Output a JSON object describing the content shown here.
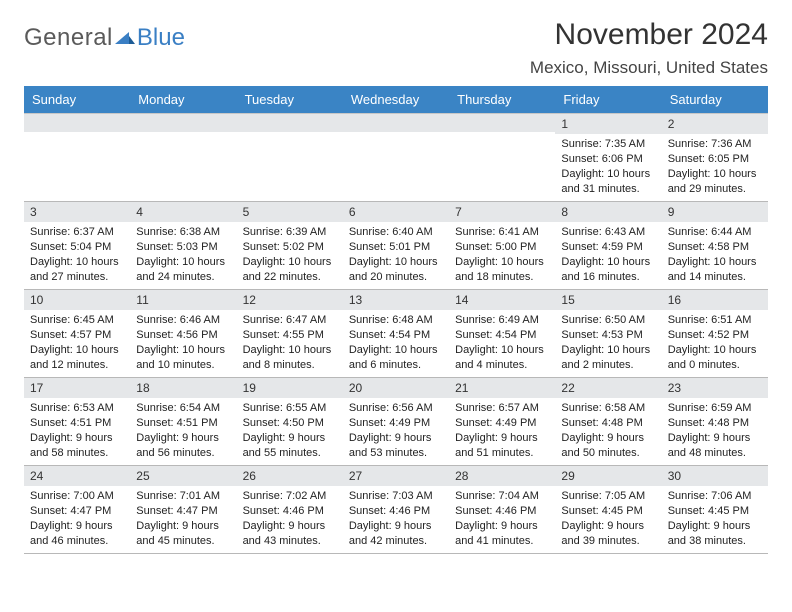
{
  "logo": {
    "general": "General",
    "blue": "Blue"
  },
  "title": "November 2024",
  "location": "Mexico, Missouri, United States",
  "colors": {
    "header_bg": "#3a84c5",
    "header_text": "#ffffff",
    "daynum_bg": "#e5e7e9",
    "border": "#b8b8b8",
    "text": "#222222",
    "logo_gray": "#5a5a5a",
    "logo_blue": "#3a7fc4"
  },
  "typography": {
    "title_fontsize": 30,
    "location_fontsize": 17,
    "weekday_fontsize": 13,
    "cell_fontsize": 11
  },
  "weekdays": [
    "Sunday",
    "Monday",
    "Tuesday",
    "Wednesday",
    "Thursday",
    "Friday",
    "Saturday"
  ],
  "weeks": [
    [
      null,
      null,
      null,
      null,
      null,
      {
        "n": "1",
        "sr": "Sunrise: 7:35 AM",
        "ss": "Sunset: 6:06 PM",
        "dl1": "Daylight: 10 hours",
        "dl2": "and 31 minutes."
      },
      {
        "n": "2",
        "sr": "Sunrise: 7:36 AM",
        "ss": "Sunset: 6:05 PM",
        "dl1": "Daylight: 10 hours",
        "dl2": "and 29 minutes."
      }
    ],
    [
      {
        "n": "3",
        "sr": "Sunrise: 6:37 AM",
        "ss": "Sunset: 5:04 PM",
        "dl1": "Daylight: 10 hours",
        "dl2": "and 27 minutes."
      },
      {
        "n": "4",
        "sr": "Sunrise: 6:38 AM",
        "ss": "Sunset: 5:03 PM",
        "dl1": "Daylight: 10 hours",
        "dl2": "and 24 minutes."
      },
      {
        "n": "5",
        "sr": "Sunrise: 6:39 AM",
        "ss": "Sunset: 5:02 PM",
        "dl1": "Daylight: 10 hours",
        "dl2": "and 22 minutes."
      },
      {
        "n": "6",
        "sr": "Sunrise: 6:40 AM",
        "ss": "Sunset: 5:01 PM",
        "dl1": "Daylight: 10 hours",
        "dl2": "and 20 minutes."
      },
      {
        "n": "7",
        "sr": "Sunrise: 6:41 AM",
        "ss": "Sunset: 5:00 PM",
        "dl1": "Daylight: 10 hours",
        "dl2": "and 18 minutes."
      },
      {
        "n": "8",
        "sr": "Sunrise: 6:43 AM",
        "ss": "Sunset: 4:59 PM",
        "dl1": "Daylight: 10 hours",
        "dl2": "and 16 minutes."
      },
      {
        "n": "9",
        "sr": "Sunrise: 6:44 AM",
        "ss": "Sunset: 4:58 PM",
        "dl1": "Daylight: 10 hours",
        "dl2": "and 14 minutes."
      }
    ],
    [
      {
        "n": "10",
        "sr": "Sunrise: 6:45 AM",
        "ss": "Sunset: 4:57 PM",
        "dl1": "Daylight: 10 hours",
        "dl2": "and 12 minutes."
      },
      {
        "n": "11",
        "sr": "Sunrise: 6:46 AM",
        "ss": "Sunset: 4:56 PM",
        "dl1": "Daylight: 10 hours",
        "dl2": "and 10 minutes."
      },
      {
        "n": "12",
        "sr": "Sunrise: 6:47 AM",
        "ss": "Sunset: 4:55 PM",
        "dl1": "Daylight: 10 hours",
        "dl2": "and 8 minutes."
      },
      {
        "n": "13",
        "sr": "Sunrise: 6:48 AM",
        "ss": "Sunset: 4:54 PM",
        "dl1": "Daylight: 10 hours",
        "dl2": "and 6 minutes."
      },
      {
        "n": "14",
        "sr": "Sunrise: 6:49 AM",
        "ss": "Sunset: 4:54 PM",
        "dl1": "Daylight: 10 hours",
        "dl2": "and 4 minutes."
      },
      {
        "n": "15",
        "sr": "Sunrise: 6:50 AM",
        "ss": "Sunset: 4:53 PM",
        "dl1": "Daylight: 10 hours",
        "dl2": "and 2 minutes."
      },
      {
        "n": "16",
        "sr": "Sunrise: 6:51 AM",
        "ss": "Sunset: 4:52 PM",
        "dl1": "Daylight: 10 hours",
        "dl2": "and 0 minutes."
      }
    ],
    [
      {
        "n": "17",
        "sr": "Sunrise: 6:53 AM",
        "ss": "Sunset: 4:51 PM",
        "dl1": "Daylight: 9 hours",
        "dl2": "and 58 minutes."
      },
      {
        "n": "18",
        "sr": "Sunrise: 6:54 AM",
        "ss": "Sunset: 4:51 PM",
        "dl1": "Daylight: 9 hours",
        "dl2": "and 56 minutes."
      },
      {
        "n": "19",
        "sr": "Sunrise: 6:55 AM",
        "ss": "Sunset: 4:50 PM",
        "dl1": "Daylight: 9 hours",
        "dl2": "and 55 minutes."
      },
      {
        "n": "20",
        "sr": "Sunrise: 6:56 AM",
        "ss": "Sunset: 4:49 PM",
        "dl1": "Daylight: 9 hours",
        "dl2": "and 53 minutes."
      },
      {
        "n": "21",
        "sr": "Sunrise: 6:57 AM",
        "ss": "Sunset: 4:49 PM",
        "dl1": "Daylight: 9 hours",
        "dl2": "and 51 minutes."
      },
      {
        "n": "22",
        "sr": "Sunrise: 6:58 AM",
        "ss": "Sunset: 4:48 PM",
        "dl1": "Daylight: 9 hours",
        "dl2": "and 50 minutes."
      },
      {
        "n": "23",
        "sr": "Sunrise: 6:59 AM",
        "ss": "Sunset: 4:48 PM",
        "dl1": "Daylight: 9 hours",
        "dl2": "and 48 minutes."
      }
    ],
    [
      {
        "n": "24",
        "sr": "Sunrise: 7:00 AM",
        "ss": "Sunset: 4:47 PM",
        "dl1": "Daylight: 9 hours",
        "dl2": "and 46 minutes."
      },
      {
        "n": "25",
        "sr": "Sunrise: 7:01 AM",
        "ss": "Sunset: 4:47 PM",
        "dl1": "Daylight: 9 hours",
        "dl2": "and 45 minutes."
      },
      {
        "n": "26",
        "sr": "Sunrise: 7:02 AM",
        "ss": "Sunset: 4:46 PM",
        "dl1": "Daylight: 9 hours",
        "dl2": "and 43 minutes."
      },
      {
        "n": "27",
        "sr": "Sunrise: 7:03 AM",
        "ss": "Sunset: 4:46 PM",
        "dl1": "Daylight: 9 hours",
        "dl2": "and 42 minutes."
      },
      {
        "n": "28",
        "sr": "Sunrise: 7:04 AM",
        "ss": "Sunset: 4:46 PM",
        "dl1": "Daylight: 9 hours",
        "dl2": "and 41 minutes."
      },
      {
        "n": "29",
        "sr": "Sunrise: 7:05 AM",
        "ss": "Sunset: 4:45 PM",
        "dl1": "Daylight: 9 hours",
        "dl2": "and 39 minutes."
      },
      {
        "n": "30",
        "sr": "Sunrise: 7:06 AM",
        "ss": "Sunset: 4:45 PM",
        "dl1": "Daylight: 9 hours",
        "dl2": "and 38 minutes."
      }
    ]
  ]
}
